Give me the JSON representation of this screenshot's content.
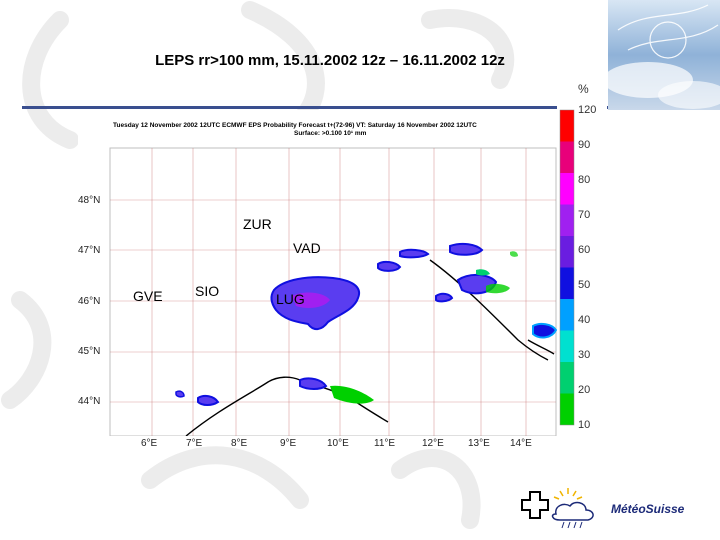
{
  "title": "LEPS rr>100 mm, 15.11.2002 12z – 16.11.2002 12z",
  "map": {
    "header_line1": "Tuesday 12 November 2002 12UTC ECMWF  EPS Probability Forecast t+(72-96) VT: Saturday 16 November 2002 12UTC",
    "header_line2": "Surface:  >0.100 10¹ mm",
    "lat_labels": [
      "48°N",
      "47°N",
      "46°N",
      "45°N",
      "44°N"
    ],
    "lon_labels": [
      "6°E",
      "7°E",
      "8°E",
      "9°E",
      "10°E",
      "11°E",
      "12°E",
      "13°E",
      "14°E"
    ],
    "stations": {
      "zur": "ZUR",
      "vad": "VAD",
      "gve": "GVE",
      "sio": "SIO",
      "lug": "LUG"
    }
  },
  "colorbar": {
    "unit": "%",
    "ticks": [
      "120",
      "90",
      "80",
      "70",
      "60",
      "50",
      "40",
      "30",
      "20",
      "10"
    ],
    "colors": [
      "#ff0000",
      "#e8007a",
      "#ff00ff",
      "#a020f0",
      "#6a1de0",
      "#1010e0",
      "#00a0ff",
      "#00e0d0",
      "#00d070",
      "#00d000"
    ]
  },
  "footer": {
    "brand": "MétéoSuisse"
  }
}
